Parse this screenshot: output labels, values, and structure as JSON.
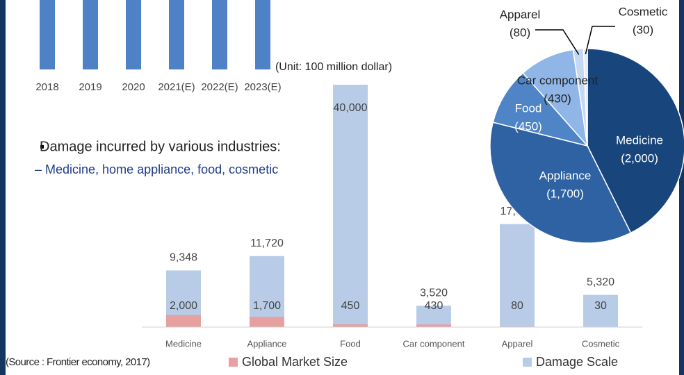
{
  "chart_data": [
    {
      "type": "bar",
      "categories": [
        "2018",
        "2019",
        "2020",
        "2021(E)",
        "2022(E)",
        "2023(E)"
      ],
      "color": "#4f81c7"
    },
    {
      "type": "bar",
      "annotation": "(Unit: 100 million dollar)",
      "categories": [
        "Medicine",
        "Appliance",
        "Food",
        "Car component",
        "Apparel",
        "Cosmetic"
      ],
      "series": [
        {
          "name": "Damage Scale",
          "color": "#b8cce8",
          "values": [
            9348,
            11720,
            40000,
            3520,
            17000,
            5320
          ],
          "value_labels": [
            "9,348",
            "11,720",
            "40,000",
            "3,520",
            "17,000",
            "5,320"
          ]
        },
        {
          "name": "Global Market Size",
          "color": "#e6a0a0",
          "values": [
            2000,
            1700,
            450,
            430,
            80,
            30
          ],
          "value_labels": [
            "2,000",
            "1,700",
            "450",
            "430",
            "80",
            "30"
          ]
        }
      ],
      "ylim": [
        0,
        40000
      ],
      "legend": "bottom"
    },
    {
      "type": "pie",
      "categories": [
        "Medicine",
        "Appliance",
        "Food",
        "Car component",
        "Apparel",
        "Cosmetic"
      ],
      "values": [
        2000,
        1700,
        450,
        430,
        80,
        30
      ],
      "value_labels": [
        "(2,000)",
        "(1,700)",
        "(450)",
        "(430)",
        "(80)",
        "(30)"
      ],
      "colors": [
        "#17457c",
        "#2e62a3",
        "#4f84c6",
        "#8fb6e6",
        "#c4d9f1",
        "#e0ecf8"
      ]
    }
  ],
  "bullet": {
    "heading": "Damage incurred by various industries:",
    "sub": "– Medicine, home appliance, food, cosmetic"
  },
  "source": "(Source : Frontier economy, 2017)"
}
